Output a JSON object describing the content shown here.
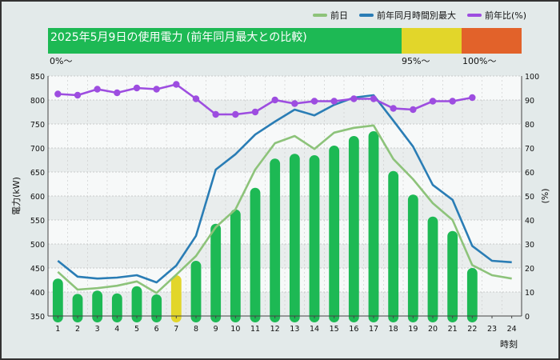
{
  "legend": {
    "items": [
      {
        "label": "前日",
        "color": "#8dc37a"
      },
      {
        "label": "前年同月時間別最大",
        "color": "#2a7db5"
      },
      {
        "label": "前年比(%)",
        "color": "#9d4de0"
      }
    ]
  },
  "ratio_bar": {
    "title": "2025年5月9日の使用電力 (前年同月最大との比較)",
    "segments": [
      {
        "label": "0%〜",
        "color": "#1db954"
      },
      {
        "label": "95%〜",
        "color": "#e2d62a"
      },
      {
        "label": "100%〜",
        "color": "#e2622a"
      }
    ]
  },
  "chart_data": {
    "type": "bar",
    "x": [
      1,
      2,
      3,
      4,
      5,
      6,
      7,
      8,
      9,
      10,
      11,
      12,
      13,
      14,
      15,
      16,
      17,
      18,
      19,
      20,
      21,
      22,
      23,
      24
    ],
    "xlabel": "時刻",
    "ylabel": "電力(kW)",
    "y2label": "(%)",
    "ylim": [
      350,
      850
    ],
    "y_ticks": [
      350,
      400,
      450,
      500,
      550,
      600,
      650,
      700,
      750,
      800,
      850
    ],
    "y2lim": [
      0,
      100
    ],
    "y2_ticks": [
      0,
      10,
      20,
      30,
      40,
      50,
      60,
      70,
      80,
      90,
      100
    ],
    "bars": {
      "name": "",
      "values": [
        428,
        396,
        403,
        397,
        412,
        395,
        435,
        465,
        542,
        572,
        617,
        678,
        688,
        685,
        705,
        725,
        735,
        652,
        603,
        557,
        527,
        450,
        null,
        null
      ],
      "colors": [
        "#1db954",
        "#1db954",
        "#1db954",
        "#1db954",
        "#1db954",
        "#1db954",
        "#e2d62a",
        "#1db954",
        "#1db954",
        "#1db954",
        "#1db954",
        "#1db954",
        "#1db954",
        "#1db954",
        "#1db954",
        "#1db954",
        "#1db954",
        "#1db954",
        "#1db954",
        "#1db954",
        "#1db954",
        "#1db954",
        "#1db954",
        "#1db954"
      ]
    },
    "series": [
      {
        "name": "前日",
        "axis": "left",
        "color": "#8dc37a",
        "values": [
          442,
          405,
          408,
          413,
          422,
          398,
          436,
          475,
          535,
          572,
          655,
          710,
          725,
          698,
          732,
          742,
          747,
          677,
          635,
          585,
          550,
          456,
          435,
          428
        ]
      },
      {
        "name": "前年同月時間別最大",
        "axis": "left",
        "color": "#2a7db5",
        "values": [
          465,
          432,
          428,
          430,
          435,
          420,
          455,
          517,
          655,
          687,
          728,
          755,
          780,
          768,
          790,
          805,
          810,
          757,
          703,
          623,
          592,
          496,
          465,
          462
        ]
      },
      {
        "name": "前年比(%)",
        "axis": "right",
        "color": "#9d4de0",
        "values": [
          92.5,
          92,
          94.5,
          93,
          95,
          94.5,
          96.5,
          90.5,
          84,
          84,
          85,
          90,
          88.5,
          89.5,
          89.5,
          90.5,
          90.5,
          86.5,
          86,
          89.5,
          89.5,
          91,
          null,
          null
        ]
      }
    ]
  }
}
